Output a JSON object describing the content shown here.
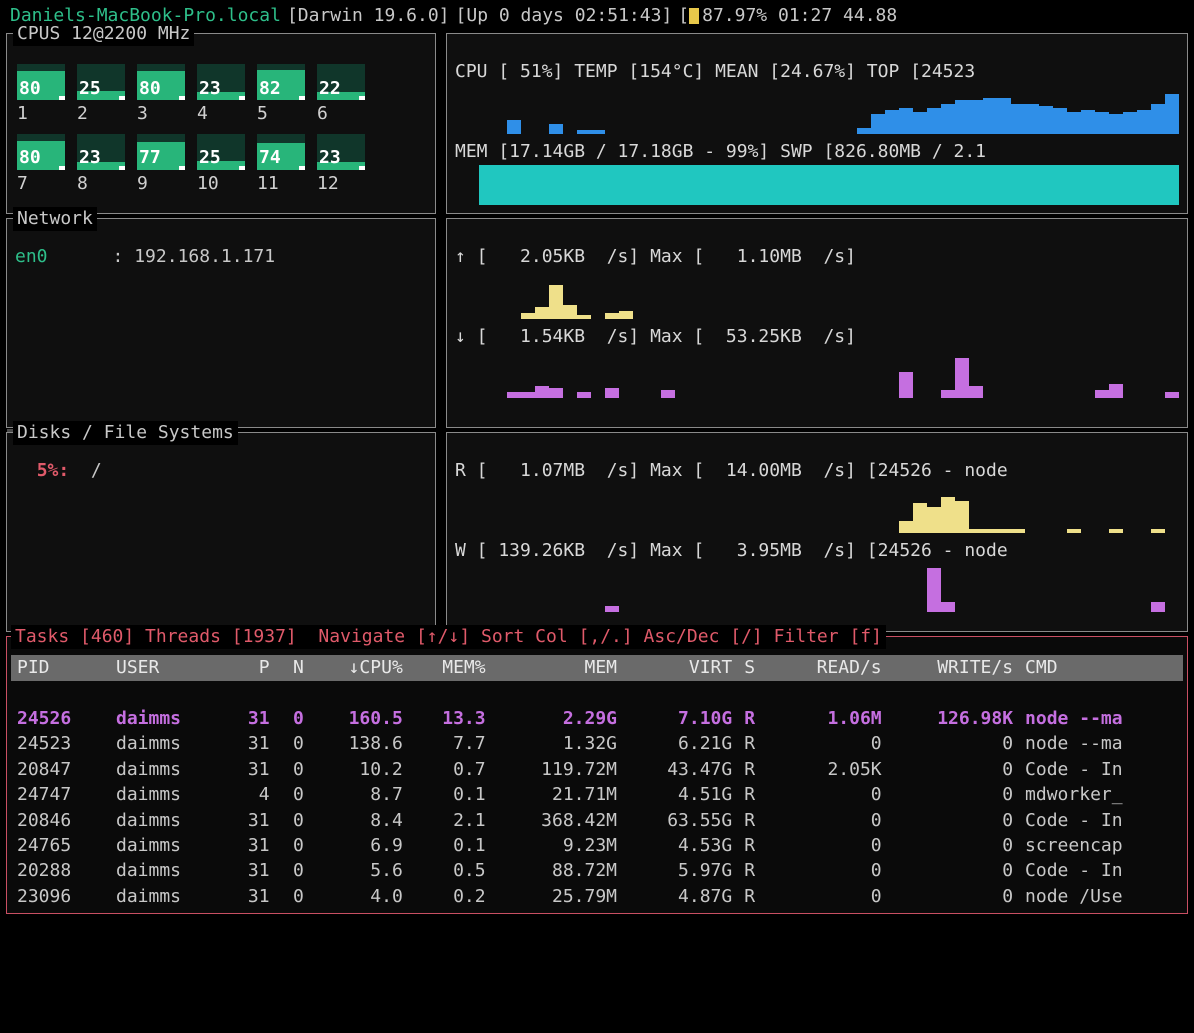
{
  "colors": {
    "bg": "#000000",
    "panel_border": "#8a8a8a",
    "text": "#c8c8c8",
    "green": "#2ebf8a",
    "cpu_bar": "#28b57a",
    "blue": "#2f8fe8",
    "cyan": "#20c7c0",
    "yellow": "#efe08a",
    "purple": "#c56fe0",
    "red": "#e05a6a",
    "header_bg": "#6a6a6a"
  },
  "topbar": {
    "hostname": "Daniels-MacBook-Pro.local",
    "os": "Darwin 19.6.0",
    "uptime": "Up 0 days 02:51:43",
    "battery_pct": "87.97%",
    "clock": "01:27",
    "extra": "44.88"
  },
  "cpus": {
    "title": "CPUS 12@2200 MHz",
    "cores": [
      {
        "idx": "1",
        "val": "80"
      },
      {
        "idx": "2",
        "val": "25"
      },
      {
        "idx": "3",
        "val": "80"
      },
      {
        "idx": "4",
        "val": "23"
      },
      {
        "idx": "5",
        "val": "82"
      },
      {
        "idx": "6",
        "val": "22"
      },
      {
        "idx": "7",
        "val": "80"
      },
      {
        "idx": "8",
        "val": "23"
      },
      {
        "idx": "9",
        "val": "77"
      },
      {
        "idx": "10",
        "val": "25"
      },
      {
        "idx": "11",
        "val": "74"
      },
      {
        "idx": "12",
        "val": "23"
      }
    ]
  },
  "cpu_summary": {
    "line": "CPU [ 51%] TEMP [154°C] MEAN [24.67%] TOP [24523",
    "spark_heights": [
      0,
      0,
      14,
      0,
      0,
      10,
      0,
      4,
      4,
      0,
      0,
      0,
      0,
      0,
      0,
      0,
      0,
      0,
      0,
      0,
      0,
      0,
      0,
      0,
      0,
      0,
      0,
      6,
      20,
      24,
      26,
      22,
      26,
      30,
      34,
      34,
      36,
      36,
      30,
      30,
      28,
      26,
      22,
      24,
      22,
      20,
      22,
      24,
      30,
      40
    ]
  },
  "mem": {
    "line": "MEM [17.14GB / 17.18GB - 99%] SWP [826.80MB / 2.1",
    "fill_pct": 99
  },
  "network": {
    "title": "Network",
    "iface": "en0",
    "ip": "192.168.1.171",
    "up_line": "↑ [   2.05KB  /s] Max [   1.10MB  /s]",
    "down_line": "↓ [   1.54KB  /s] Max [  53.25KB  /s]",
    "up_spark": [
      0,
      0,
      0,
      6,
      12,
      34,
      14,
      4,
      0,
      6,
      8,
      0,
      0,
      0,
      0,
      0,
      0,
      0,
      0,
      0,
      0,
      0,
      0,
      0,
      0,
      0,
      0,
      0,
      0,
      0,
      0,
      0,
      0,
      0,
      0,
      0,
      0,
      0,
      0,
      0,
      0,
      0,
      0,
      0,
      0,
      0,
      0,
      0,
      0,
      0
    ],
    "down_spark": [
      0,
      0,
      6,
      6,
      12,
      10,
      0,
      6,
      0,
      10,
      0,
      0,
      0,
      8,
      0,
      0,
      0,
      0,
      0,
      0,
      0,
      0,
      0,
      0,
      0,
      0,
      0,
      0,
      0,
      0,
      26,
      0,
      0,
      8,
      40,
      12,
      0,
      0,
      0,
      0,
      0,
      0,
      0,
      0,
      8,
      14,
      0,
      0,
      0,
      6
    ]
  },
  "disks": {
    "title": "Disks / File Systems",
    "pct": "5%:",
    "mount": "/",
    "read_line": "R [   1.07MB  /s] Max [  14.00MB  /s] [24526 - node",
    "write_line": "W [ 139.26KB  /s] Max [   3.95MB  /s] [24526 - node",
    "read_spark": [
      0,
      0,
      0,
      0,
      0,
      0,
      0,
      0,
      0,
      0,
      0,
      0,
      0,
      0,
      0,
      0,
      0,
      0,
      0,
      0,
      0,
      0,
      0,
      0,
      0,
      0,
      0,
      0,
      0,
      0,
      12,
      30,
      26,
      36,
      32,
      4,
      4,
      4,
      4,
      0,
      0,
      0,
      4,
      0,
      0,
      4,
      0,
      0,
      4,
      0
    ],
    "write_spark": [
      0,
      0,
      0,
      0,
      0,
      0,
      0,
      0,
      0,
      6,
      0,
      0,
      0,
      0,
      0,
      0,
      0,
      0,
      0,
      0,
      0,
      0,
      0,
      0,
      0,
      0,
      0,
      0,
      0,
      0,
      0,
      0,
      44,
      10,
      0,
      0,
      0,
      0,
      0,
      0,
      0,
      0,
      0,
      0,
      0,
      0,
      0,
      0,
      10,
      0
    ]
  },
  "tasks": {
    "title": "Tasks [460] Threads [1937]  Navigate [↑/↓] Sort Col [,/.] Asc/Dec [/] Filter [f]",
    "columns": [
      "PID",
      "USER",
      "P",
      "N",
      "↓CPU%",
      "MEM%",
      "MEM",
      "VIRT",
      "S",
      "READ/s",
      "WRITE/s",
      "CMD"
    ],
    "rows": [
      {
        "hi": true,
        "pid": "24526",
        "user": "daimms",
        "p": "31",
        "n": "0",
        "cpu": "160.5",
        "memp": "13.3",
        "mem": "2.29G",
        "virt": "7.10G",
        "s": "R",
        "read": "1.06M",
        "write": "126.98K",
        "cmd": "node --ma"
      },
      {
        "pid": "24523",
        "user": "daimms",
        "p": "31",
        "n": "0",
        "cpu": "138.6",
        "memp": "7.7",
        "mem": "1.32G",
        "virt": "6.21G",
        "s": "R",
        "read": "0",
        "write": "0",
        "cmd": "node --ma"
      },
      {
        "pid": "20847",
        "user": "daimms",
        "p": "31",
        "n": "0",
        "cpu": "10.2",
        "memp": "0.7",
        "mem": "119.72M",
        "virt": "43.47G",
        "s": "R",
        "read": "2.05K",
        "write": "0",
        "cmd": "Code - In"
      },
      {
        "pid": "24747",
        "user": "daimms",
        "p": "4",
        "n": "0",
        "cpu": "8.7",
        "memp": "0.1",
        "mem": "21.71M",
        "virt": "4.51G",
        "s": "R",
        "read": "0",
        "write": "0",
        "cmd": "mdworker_"
      },
      {
        "pid": "20846",
        "user": "daimms",
        "p": "31",
        "n": "0",
        "cpu": "8.4",
        "memp": "2.1",
        "mem": "368.42M",
        "virt": "63.55G",
        "s": "R",
        "read": "0",
        "write": "0",
        "cmd": "Code - In"
      },
      {
        "pid": "24765",
        "user": "daimms",
        "p": "31",
        "n": "0",
        "cpu": "6.9",
        "memp": "0.1",
        "mem": "9.23M",
        "virt": "4.53G",
        "s": "R",
        "read": "0",
        "write": "0",
        "cmd": "screencap"
      },
      {
        "pid": "20288",
        "user": "daimms",
        "p": "31",
        "n": "0",
        "cpu": "5.6",
        "memp": "0.5",
        "mem": "88.72M",
        "virt": "5.97G",
        "s": "R",
        "read": "0",
        "write": "0",
        "cmd": "Code - In"
      },
      {
        "pid": "23096",
        "user": "daimms",
        "p": "31",
        "n": "0",
        "cpu": "4.0",
        "memp": "0.2",
        "mem": "25.79M",
        "virt": "4.87G",
        "s": "R",
        "read": "0",
        "write": "0",
        "cmd": "node /Use"
      }
    ]
  }
}
